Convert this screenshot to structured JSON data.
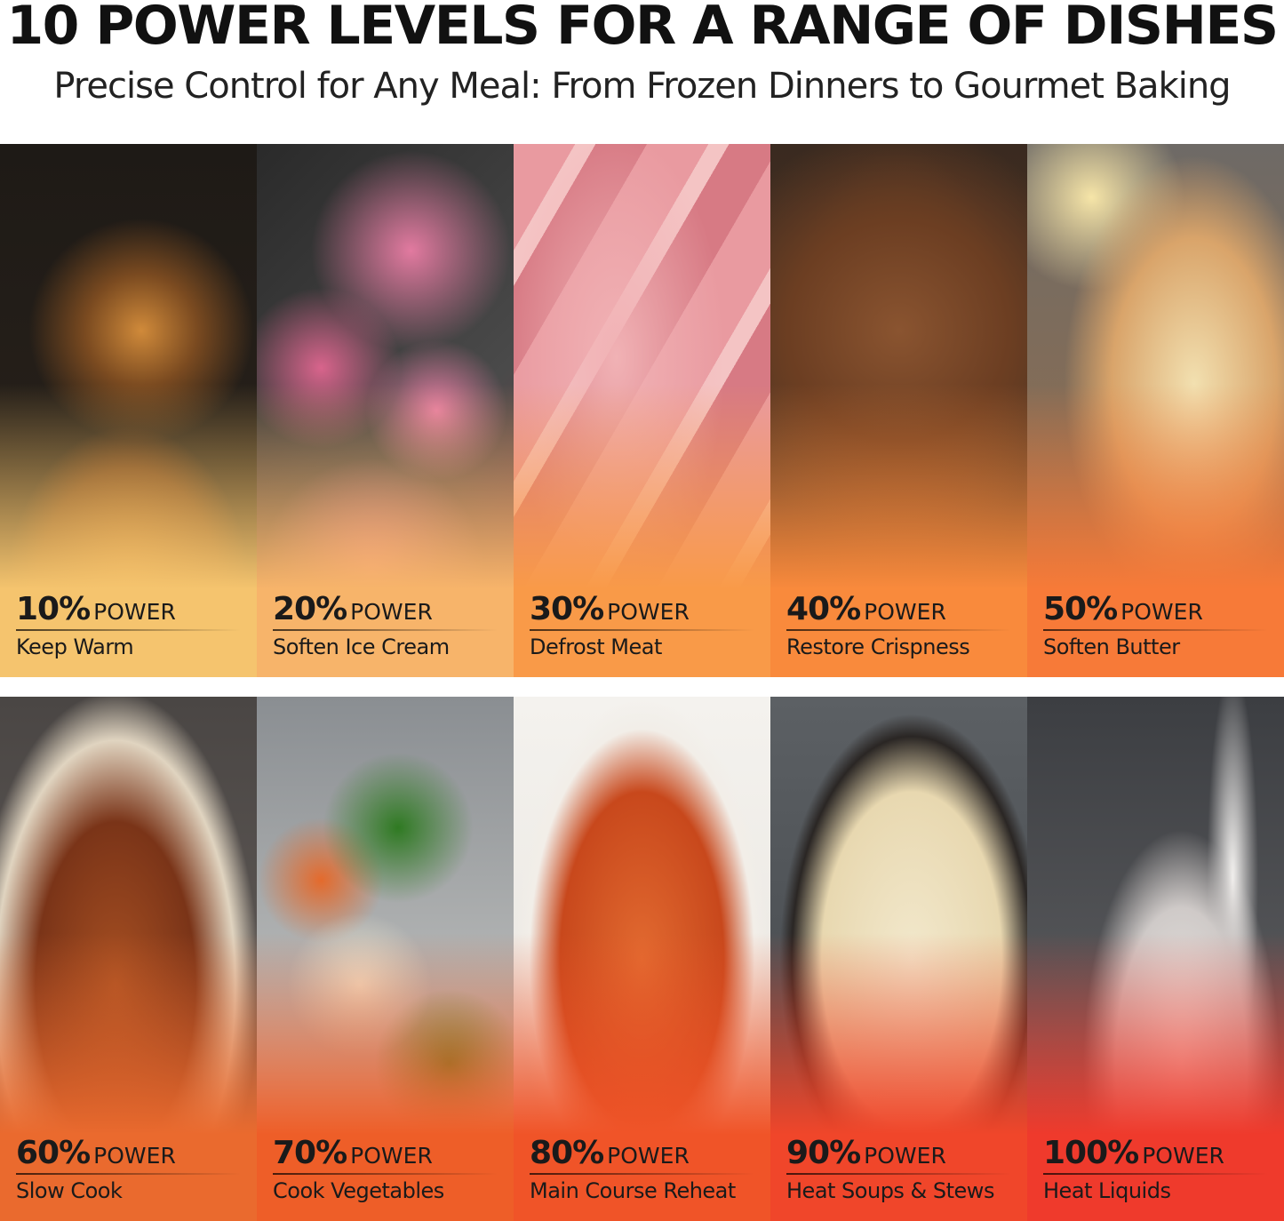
{
  "header": {
    "title": "10 POWER LEVELS FOR A RANGE OF DISHES",
    "subtitle": "Precise Control for Any Meal: From Frozen Dinners to Gourmet Baking"
  },
  "power_unit_label": "POWER",
  "levels": [
    {
      "percent": "10%",
      "use": "Keep Warm",
      "color": "#f5c46e",
      "image": "spaghetti"
    },
    {
      "percent": "20%",
      "use": "Soften Ice Cream",
      "color": "#f7b46a",
      "image": "ice-cream"
    },
    {
      "percent": "30%",
      "use": "Defrost Meat",
      "color": "#f99a48",
      "image": "raw-meat"
    },
    {
      "percent": "40%",
      "use": "Restore Crispness",
      "color": "#f98a3c",
      "image": "nuts"
    },
    {
      "percent": "50%",
      "use": "Soften Butter",
      "color": "#f77a38",
      "image": "butter-toast"
    },
    {
      "percent": "60%",
      "use": "Slow Cook",
      "color": "#ea6a2e",
      "image": "beef-stew"
    },
    {
      "percent": "70%",
      "use": "Cook Vegetables",
      "color": "#ee5e28",
      "image": "vegetables"
    },
    {
      "percent": "80%",
      "use": "Main Course Reheat",
      "color": "#f05428",
      "image": "baked-dish"
    },
    {
      "percent": "90%",
      "use": "Heat Soups & Stews",
      "color": "#f0462a",
      "image": "seafood-soup"
    },
    {
      "percent": "100%",
      "use": "Heat Liquids",
      "color": "#ef3a2c",
      "image": "milk"
    }
  ]
}
